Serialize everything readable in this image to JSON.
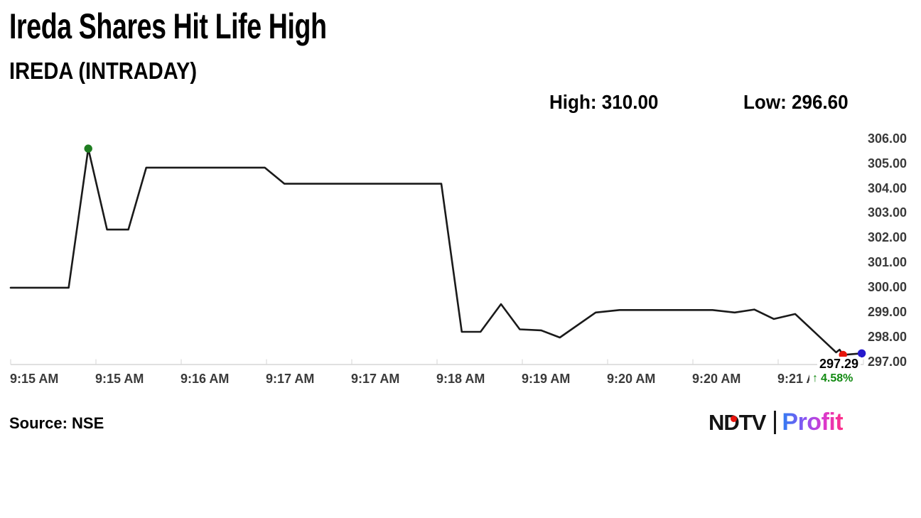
{
  "header": {
    "title": "Ireda Shares Hit Life High",
    "subtitle": "IREDA (INTRADAY)",
    "high_label": "High: 310.00",
    "low_label": "Low: 296.60"
  },
  "footer": {
    "source": "Source: NSE",
    "logo": {
      "ndtv_text": "NDTV",
      "profit_text": "Profit",
      "ndtv_color": "#141414",
      "dot_color": "#e8130c",
      "profit_gradient": [
        "#2e7ef2",
        "#8a53f2",
        "#d83ad0",
        "#ff2e87"
      ]
    }
  },
  "chart_data": {
    "type": "line",
    "title": "IREDA (INTRADAY)",
    "high": 310.0,
    "low": 296.6,
    "last_price": 297.29,
    "x_domain": [
      "9:15 AM",
      "9:21 AM"
    ],
    "x_ticks": [
      "9:15 AM",
      "9:15 AM",
      "9:16 AM",
      "9:17 AM",
      "9:17 AM",
      "9:18 AM",
      "9:19 AM",
      "9:20 AM",
      "9:20 AM",
      "9:21 AM"
    ],
    "y_ticks": [
      "306.00",
      "305.00",
      "304.00",
      "303.00",
      "302.00",
      "301.00",
      "300.00",
      "299.00",
      "298.00",
      "297.00"
    ],
    "ylim": [
      297.0,
      306.0
    ],
    "grid": false,
    "legend": "none",
    "line_color": "#1a1a1a",
    "axis_color": "#d6d6d6",
    "tick_label_color": "#3a3a3a",
    "points": [
      [
        0.0,
        300.0
      ],
      [
        0.068,
        300.0
      ],
      [
        0.091,
        305.62
      ],
      [
        0.113,
        302.35
      ],
      [
        0.138,
        302.35
      ],
      [
        0.159,
        304.85
      ],
      [
        0.298,
        304.85
      ],
      [
        0.321,
        304.2
      ],
      [
        0.505,
        304.2
      ],
      [
        0.529,
        298.22
      ],
      [
        0.551,
        298.22
      ],
      [
        0.575,
        299.34
      ],
      [
        0.597,
        298.32
      ],
      [
        0.622,
        298.28
      ],
      [
        0.644,
        297.99
      ],
      [
        0.686,
        299.0
      ],
      [
        0.714,
        299.1
      ],
      [
        0.823,
        299.1
      ],
      [
        0.849,
        299.0
      ],
      [
        0.872,
        299.12
      ],
      [
        0.895,
        298.74
      ],
      [
        0.92,
        298.94
      ],
      [
        0.968,
        297.39
      ],
      [
        0.972,
        297.5
      ],
      [
        0.976,
        297.29
      ],
      [
        0.998,
        297.35
      ]
    ],
    "markers": [
      {
        "index": 2,
        "color": "#1e7d20",
        "name": "peak-marker"
      },
      {
        "index": 24,
        "color": "#e6150b",
        "name": "last-price-marker"
      },
      {
        "index": 25,
        "color": "#2619cd",
        "name": "live-tick-marker"
      }
    ],
    "annotations": {
      "last_price": "297.29",
      "change_arrow": "↑",
      "change_pct": "4.58%",
      "change_color": "#128a12"
    }
  }
}
